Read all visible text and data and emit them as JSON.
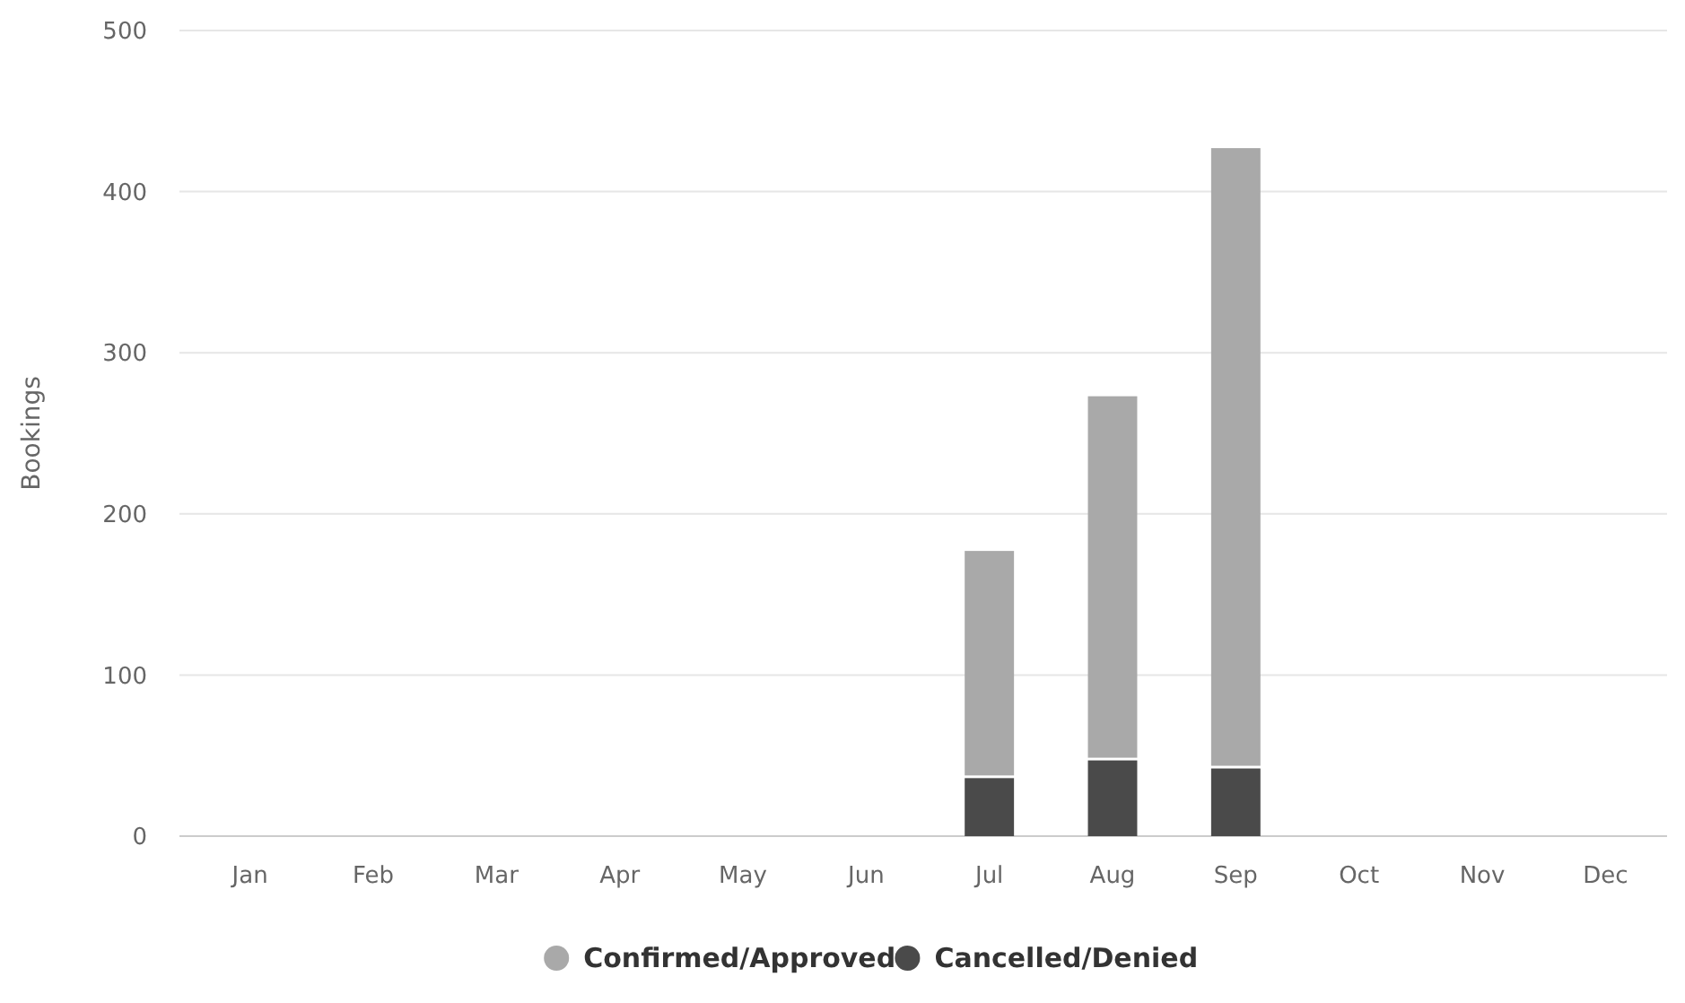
{
  "chart_data": {
    "type": "bar",
    "stacked": true,
    "ylabel": "Bookings",
    "categories": [
      "Jan",
      "Feb",
      "Mar",
      "Apr",
      "May",
      "Jun",
      "Jul",
      "Aug",
      "Sep",
      "Oct",
      "Nov",
      "Dec"
    ],
    "series": [
      {
        "name": "Cancelled/Denied",
        "color": "#4a4a4a",
        "values": [
          0,
          0,
          0,
          0,
          0,
          0,
          36,
          47,
          42,
          0,
          0,
          0
        ]
      },
      {
        "name": "Confirmed/Approved",
        "color": "#a9a9a9",
        "values": [
          0,
          0,
          0,
          0,
          0,
          0,
          141,
          226,
          385,
          0,
          0,
          0
        ]
      }
    ],
    "ylim": [
      0,
      500
    ],
    "yticks": [
      0,
      100,
      200,
      300,
      400,
      500
    ],
    "grid": "y",
    "legend": "bottom"
  }
}
